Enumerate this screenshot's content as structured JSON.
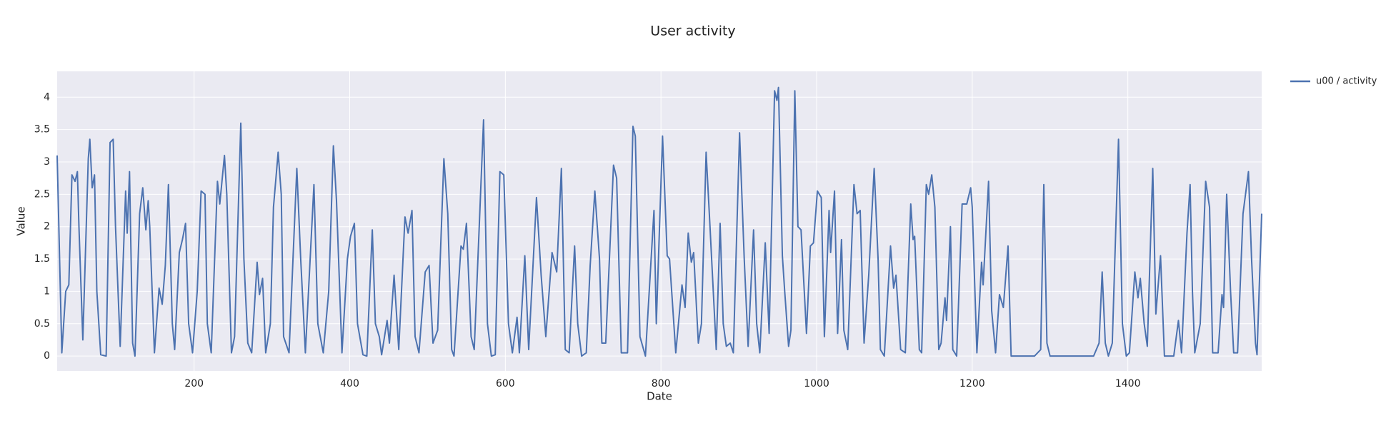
{
  "chart_data": {
    "type": "line",
    "title": "User activity",
    "x_label": "Date",
    "y_label": "Value",
    "x": [
      24,
      30,
      35,
      39,
      43,
      47,
      50,
      52,
      57,
      64,
      66,
      69,
      72,
      75,
      80,
      87,
      92,
      96,
      99,
      105,
      112,
      114,
      117,
      121,
      124,
      130,
      134,
      138,
      141,
      143,
      149,
      155,
      159,
      163,
      167,
      172,
      175,
      181,
      185,
      189,
      193,
      198,
      204,
      209,
      214,
      217,
      222,
      230,
      233,
      239,
      242,
      248,
      252,
      260,
      264,
      269,
      274,
      281,
      284,
      288,
      292,
      298,
      302,
      308,
      312,
      315,
      322,
      332,
      337,
      343,
      354,
      359,
      366,
      373,
      379,
      383,
      390,
      397,
      401,
      406,
      410,
      417,
      422,
      429,
      433,
      438,
      441,
      448,
      451,
      457,
      463,
      471,
      475,
      480,
      484,
      489,
      497,
      502,
      507,
      513,
      521,
      526,
      531,
      534,
      543,
      546,
      550,
      556,
      560,
      572,
      577,
      582,
      587,
      593,
      598,
      604,
      609,
      615,
      618,
      625,
      630,
      640,
      646,
      652,
      660,
      666,
      672,
      677,
      682,
      689,
      693,
      698,
      704,
      709,
      715,
      721,
      724,
      729,
      739,
      743,
      749,
      757,
      764,
      767,
      773,
      780,
      791,
      794,
      802,
      808,
      811,
      819,
      827,
      831,
      835,
      839,
      842,
      848,
      852,
      858,
      863,
      871,
      876,
      880,
      884,
      889,
      893,
      901,
      907,
      912,
      919,
      923,
      927,
      934,
      939,
      946,
      949,
      951,
      956,
      959,
      964,
      967,
      972,
      976,
      980,
      987,
      992,
      996,
      1001,
      1006,
      1010,
      1016,
      1018,
      1023,
      1027,
      1032,
      1035,
      1040,
      1048,
      1052,
      1056,
      1061,
      1067,
      1074,
      1079,
      1082,
      1087,
      1095,
      1099,
      1102,
      1108,
      1114,
      1121,
      1124,
      1126,
      1132,
      1135,
      1141,
      1144,
      1148,
      1152,
      1157,
      1160,
      1165,
      1167,
      1172,
      1175,
      1180,
      1187,
      1193,
      1198,
      1200,
      1206,
      1212,
      1214,
      1221,
      1225,
      1230,
      1235,
      1240,
      1246,
      1250,
      1257,
      1280,
      1288,
      1292,
      1296,
      1300,
      1314,
      1356,
      1363,
      1367,
      1371,
      1375,
      1380,
      1388,
      1393,
      1398,
      1402,
      1409,
      1413,
      1416,
      1421,
      1425,
      1432,
      1436,
      1442,
      1447,
      1451,
      1459,
      1465,
      1469,
      1476,
      1480,
      1483,
      1486,
      1493,
      1500,
      1505,
      1509,
      1516,
      1521,
      1523,
      1527,
      1532,
      1536,
      1541,
      1548,
      1555,
      1559,
      1564,
      1566,
      1572
    ],
    "series": [
      {
        "name": "u00 / activity",
        "color": "#4c72b0",
        "values": [
          3.1,
          0.05,
          1.0,
          1.1,
          2.8,
          2.7,
          2.85,
          2.0,
          0.25,
          3.05,
          3.35,
          2.6,
          2.8,
          1.0,
          0.02,
          0,
          3.3,
          3.35,
          2.0,
          0.15,
          2.55,
          1.9,
          2.85,
          0.2,
          0.0,
          2.2,
          2.6,
          1.95,
          2.4,
          2.0,
          0.05,
          1.05,
          0.8,
          1.4,
          2.65,
          0.5,
          0.1,
          1.6,
          1.8,
          2.05,
          0.5,
          0.05,
          1.0,
          2.55,
          2.5,
          0.5,
          0.05,
          2.7,
          2.35,
          3.1,
          2.5,
          0.05,
          0.3,
          3.6,
          1.5,
          0.2,
          0.05,
          1.45,
          0.95,
          1.2,
          0.05,
          0.5,
          2.3,
          3.15,
          2.5,
          0.3,
          0.05,
          2.9,
          1.5,
          0.05,
          2.65,
          0.5,
          0.05,
          1.0,
          3.25,
          2.4,
          0.05,
          1.5,
          1.85,
          2.05,
          0.5,
          0.02,
          0.0,
          1.95,
          0.5,
          0.3,
          0.02,
          0.55,
          0.2,
          1.25,
          0.1,
          2.15,
          1.9,
          2.25,
          0.3,
          0.05,
          1.3,
          1.4,
          0.2,
          0.4,
          3.05,
          2.2,
          0.1,
          0.0,
          1.7,
          1.65,
          2.05,
          0.3,
          0.1,
          3.65,
          0.5,
          0.0,
          0.02,
          2.85,
          2.8,
          0.5,
          0.05,
          0.6,
          0.05,
          1.55,
          0.1,
          2.45,
          1.25,
          0.3,
          1.6,
          1.3,
          2.9,
          0.1,
          0.05,
          1.7,
          0.5,
          0.0,
          0.05,
          1.4,
          2.55,
          1.5,
          0.2,
          0.2,
          2.95,
          2.75,
          0.05,
          0.05,
          3.55,
          3.4,
          0.3,
          0.0,
          2.25,
          0.5,
          3.4,
          1.55,
          1.5,
          0.05,
          1.1,
          0.75,
          1.9,
          1.45,
          1.6,
          0.2,
          0.5,
          3.15,
          2.0,
          0.1,
          2.05,
          0.5,
          0.15,
          0.2,
          0.05,
          3.45,
          1.5,
          0.15,
          1.95,
          0.5,
          0.05,
          1.75,
          0.35,
          4.1,
          3.95,
          4.15,
          1.55,
          1.0,
          0.15,
          0.4,
          4.1,
          2.0,
          1.95,
          0.35,
          1.7,
          1.75,
          2.55,
          2.45,
          0.3,
          2.25,
          1.6,
          2.55,
          0.35,
          1.8,
          0.4,
          0.1,
          2.65,
          2.2,
          2.25,
          0.2,
          1.25,
          2.9,
          1.5,
          0.1,
          0.0,
          1.7,
          1.05,
          1.25,
          0.1,
          0.05,
          2.35,
          1.8,
          1.85,
          0.1,
          0.05,
          2.65,
          2.5,
          2.8,
          2.3,
          0.1,
          0.2,
          0.9,
          0.55,
          2.0,
          0.1,
          0.0,
          2.35,
          2.35,
          2.6,
          2.3,
          0.05,
          1.45,
          1.1,
          2.7,
          0.7,
          0.05,
          0.95,
          0.75,
          1.7,
          0.0,
          0.0,
          0.0,
          0.1,
          2.65,
          0.2,
          0.0,
          0.0,
          0.0,
          0.2,
          1.3,
          0.2,
          0.0,
          0.2,
          3.35,
          0.5,
          0.0,
          0.05,
          1.3,
          0.9,
          1.2,
          0.5,
          0.15,
          2.9,
          0.65,
          1.55,
          0.0,
          0.0,
          0.0,
          0.55,
          0.05,
          1.9,
          2.65,
          1.0,
          0.05,
          0.5,
          2.7,
          2.3,
          0.05,
          0.05,
          0.95,
          0.75,
          2.5,
          1.0,
          0.05,
          0.05,
          2.2,
          2.85,
          1.5,
          0.2,
          0.02,
          2.2
        ]
      }
    ],
    "xlim": [
      24,
      1572
    ],
    "xticks": [
      200,
      400,
      600,
      800,
      1000,
      1200,
      1400
    ],
    "ylim": [
      -0.23,
      4.4
    ],
    "yticks": [
      0,
      0.5,
      1,
      1.5,
      2,
      2.5,
      3,
      3.5,
      4
    ],
    "grid": true
  }
}
